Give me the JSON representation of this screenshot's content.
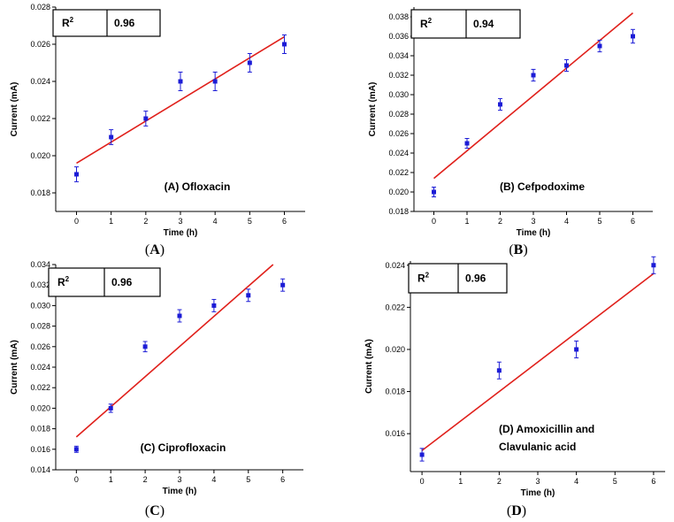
{
  "chart_data": [
    {
      "type": "scatter",
      "panel": "A",
      "caption": "A",
      "label": "(A) Ofloxacin",
      "label_lines": [
        "(A) Ofloxacin"
      ],
      "r2_label": "R",
      "r2_sup": "2",
      "r2_value": "0.96",
      "xlabel": "Time (h)",
      "ylabel": "Current (mA)",
      "xlim": [
        -0.6,
        6.6
      ],
      "ylim": [
        0.017,
        0.028
      ],
      "xticks": [
        0,
        1,
        2,
        3,
        4,
        5,
        6
      ],
      "yticks": [
        0.018,
        0.02,
        0.022,
        0.024,
        0.026,
        0.028
      ],
      "ytick_labels": [
        "0.018",
        "0.020",
        "0.022",
        "0.024",
        "0.026",
        "0.028"
      ],
      "x": [
        0,
        1,
        2,
        3,
        4,
        5,
        6
      ],
      "y": [
        0.019,
        0.021,
        0.022,
        0.024,
        0.024,
        0.025,
        0.026
      ],
      "yerr": [
        0.0004,
        0.0004,
        0.0004,
        0.0005,
        0.0005,
        0.0005,
        0.0005
      ],
      "fit": [
        [
          0,
          0.0196
        ],
        [
          6,
          0.0264
        ]
      ]
    },
    {
      "type": "scatter",
      "panel": "B",
      "caption": "B",
      "label": "(B) Cefpodoxime",
      "label_lines": [
        "(B) Cefpodoxime"
      ],
      "r2_label": "R",
      "r2_sup": "2",
      "r2_value": "0.94",
      "xlabel": "Time (h)",
      "ylabel": "Current (mA)",
      "xlim": [
        -0.6,
        6.6
      ],
      "ylim": [
        0.018,
        0.039
      ],
      "xticks": [
        0,
        1,
        2,
        3,
        4,
        5,
        6
      ],
      "yticks": [
        0.018,
        0.02,
        0.022,
        0.024,
        0.026,
        0.028,
        0.03,
        0.032,
        0.034,
        0.036,
        0.038
      ],
      "ytick_labels": [
        "0.018",
        "0.020",
        "0.022",
        "0.024",
        "0.026",
        "0.028",
        "0.030",
        "0.032",
        "0.034",
        "0.036",
        "0.038"
      ],
      "x": [
        0,
        1,
        2,
        3,
        4,
        5,
        6
      ],
      "y": [
        0.02,
        0.025,
        0.029,
        0.032,
        0.033,
        0.035,
        0.036
      ],
      "yerr": [
        0.0005,
        0.0005,
        0.0006,
        0.0006,
        0.0006,
        0.0006,
        0.0007
      ],
      "fit": [
        [
          0,
          0.0214
        ],
        [
          6,
          0.0384
        ]
      ]
    },
    {
      "type": "scatter",
      "panel": "C",
      "caption": "C",
      "label": "(C) Ciprofloxacin",
      "label_lines": [
        "(C) Ciprofloxacin"
      ],
      "r2_label": "R",
      "r2_sup": "2",
      "r2_value": "0.96",
      "xlabel": "Time (h)",
      "ylabel": "Current (mA)",
      "xlim": [
        -0.6,
        6.6
      ],
      "ylim": [
        0.014,
        0.034
      ],
      "xticks": [
        0,
        1,
        2,
        3,
        4,
        5,
        6
      ],
      "yticks": [
        0.014,
        0.016,
        0.018,
        0.02,
        0.022,
        0.024,
        0.026,
        0.028,
        0.03,
        0.032,
        0.034
      ],
      "ytick_labels": [
        "0.014",
        "0.016",
        "0.018",
        "0.020",
        "0.022",
        "0.024",
        "0.026",
        "0.028",
        "0.030",
        "0.032",
        "0.034"
      ],
      "x": [
        0,
        1,
        2,
        3,
        4,
        5,
        6
      ],
      "y": [
        0.016,
        0.02,
        0.026,
        0.029,
        0.03,
        0.031,
        0.032
      ],
      "yerr": [
        0.0003,
        0.0004,
        0.0005,
        0.0006,
        0.0006,
        0.0006,
        0.0006
      ],
      "fit": [
        [
          0,
          0.0172
        ],
        [
          5.72,
          0.034
        ]
      ]
    },
    {
      "type": "scatter",
      "panel": "D",
      "caption": "D",
      "label": "(D) Amoxicillin and Clavulanic acid",
      "label_lines": [
        "(D) Amoxicillin and",
        "Clavulanic acid"
      ],
      "r2_label": "R",
      "r2_sup": "2",
      "r2_value": "0.96",
      "xlabel": "Time (h)",
      "ylabel": "Current (mA)",
      "xlim": [
        -0.3,
        6.3
      ],
      "ylim": [
        0.0142,
        0.0242
      ],
      "xticks": [
        0,
        1,
        2,
        3,
        4,
        5,
        6
      ],
      "yticks": [
        0.016,
        0.018,
        0.02,
        0.022,
        0.024
      ],
      "ytick_labels": [
        "0.016",
        "0.018",
        "0.020",
        "0.022",
        "0.024"
      ],
      "x": [
        0,
        2,
        4,
        6
      ],
      "y": [
        0.015,
        0.019,
        0.02,
        0.024
      ],
      "yerr": [
        0.0003,
        0.0004,
        0.0004,
        0.0004
      ],
      "fit": [
        [
          0,
          0.0152
        ],
        [
          6,
          0.0236
        ]
      ]
    }
  ],
  "colors": {
    "marker": "#1c1cd6",
    "fit_line": "#e0201b",
    "axis": "#000000"
  }
}
